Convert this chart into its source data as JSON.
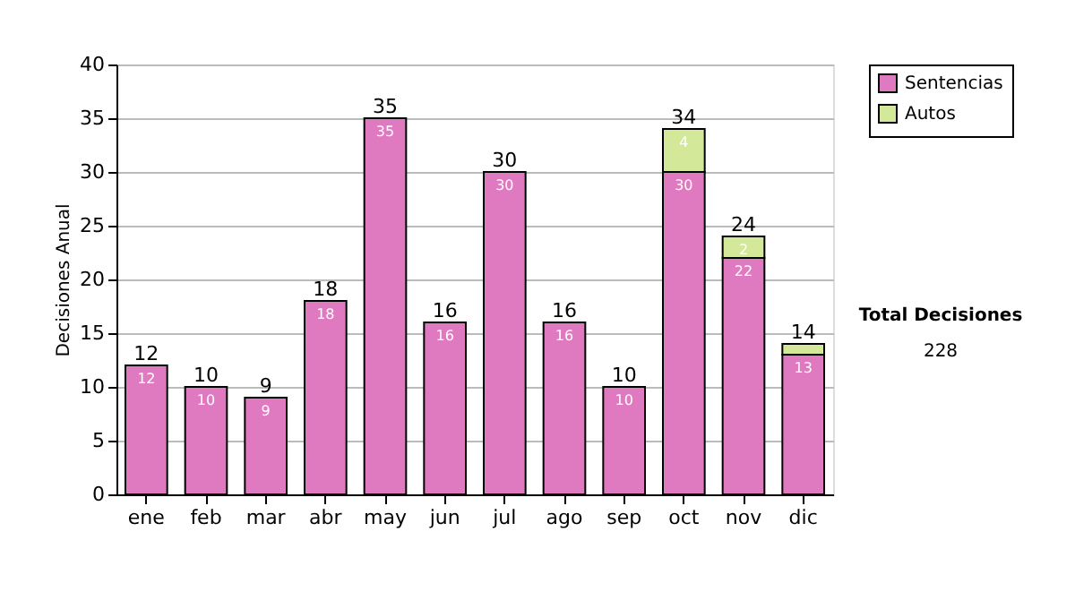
{
  "chart_data": {
    "type": "bar",
    "stacked": true,
    "ylabel": "Decisiones Anual",
    "categories": [
      "ene",
      "feb",
      "mar",
      "abr",
      "may",
      "jun",
      "jul",
      "ago",
      "sep",
      "oct",
      "nov",
      "dic"
    ],
    "series": [
      {
        "name": "Sentencias",
        "color": "#e07ac0",
        "values": [
          12,
          10,
          9,
          18,
          35,
          16,
          30,
          16,
          10,
          30,
          22,
          13
        ],
        "value_labels": [
          "12",
          "10",
          "9",
          "18",
          "35",
          "16",
          "30",
          "16",
          "10",
          "30",
          "22",
          "13"
        ]
      },
      {
        "name": "Autos",
        "color": "#d4e89a",
        "values": [
          null,
          null,
          null,
          null,
          null,
          null,
          null,
          null,
          null,
          4,
          2,
          1
        ],
        "value_labels": [
          null,
          null,
          null,
          null,
          null,
          null,
          null,
          null,
          null,
          "4",
          "2",
          null
        ]
      }
    ],
    "totals": [
      "12",
      "10",
      "9",
      "18",
      "35",
      "16",
      "30",
      "16",
      "10",
      "34",
      "24",
      "14"
    ],
    "ylim": [
      0,
      40
    ],
    "yticks": [
      0,
      5,
      10,
      15,
      20,
      25,
      30,
      35,
      40
    ],
    "grid": "y",
    "legend": "right",
    "annotations": [
      "Total Decisiones",
      "228"
    ]
  }
}
